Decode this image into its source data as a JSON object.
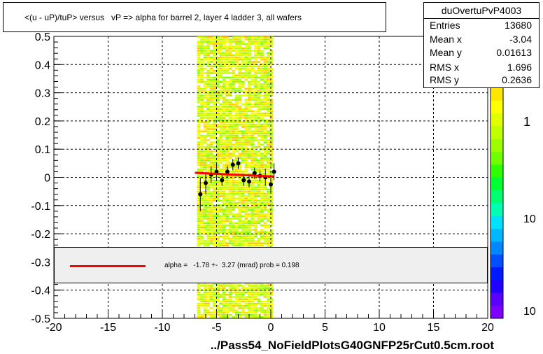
{
  "title": "<(u - uP)/tuP> versus   vP => alpha for barrel 2, layer 4 ladder 3, all wafers",
  "stats": {
    "name": "duOvertuPvP4003",
    "rows": [
      {
        "label": "Entries",
        "value": "13680"
      },
      {
        "label": "Mean x",
        "value": "-3.04"
      },
      {
        "label": "Mean y",
        "value": "0.01613"
      },
      {
        "label": "RMS x",
        "value": "1.696"
      },
      {
        "label": "RMS y",
        "value": "0.2636"
      }
    ]
  },
  "fit": {
    "text": "alpha =   -1.78 +-  3.27 (mrad) prob = 0.198",
    "color": "#ff0000"
  },
  "file_label": "../Pass54_NoFieldPlotsG40GNFP25rCut0.5cm.root",
  "colorbar": {
    "labels": [
      "1",
      "10",
      "10"
    ],
    "colors": [
      "#7f00ff",
      "#5a00ff",
      "#2000ff",
      "#0019ff",
      "#0050ff",
      "#0088ff",
      "#00b8ff",
      "#00e0ff",
      "#00ffb0",
      "#00ff70",
      "#00ff30",
      "#30ff00",
      "#70ff00",
      "#9cff00",
      "#c0ff00",
      "#e0ff00",
      "#ffff00",
      "#ffe600"
    ]
  },
  "chart_data": {
    "type": "scatter",
    "title": "<(u - uP)/tuP> versus   vP => alpha for barrel 2, layer 4 ladder 3, all wafers",
    "xlim": [
      -20,
      20
    ],
    "ylim": [
      -0.5,
      0.5
    ],
    "x_ticks": [
      "-20",
      "-15",
      "-10",
      "-5",
      "0",
      "5",
      "10",
      "15",
      "20"
    ],
    "y_ticks": [
      "-0.5",
      "-0.4",
      "-0.3",
      "-0.2",
      "-0.1",
      "0",
      "0.1",
      "0.2",
      "0.3",
      "0.4",
      "0.5"
    ],
    "grid": true,
    "histogram_band_x": [
      -6.8,
      0.2
    ],
    "profile_points": [
      {
        "x": -6.5,
        "y": -0.06,
        "err": 0.06
      },
      {
        "x": -6.0,
        "y": -0.02,
        "err": 0.04
      },
      {
        "x": -5.5,
        "y": 0.01,
        "err": 0.03
      },
      {
        "x": -5.0,
        "y": 0.02,
        "err": 0.03
      },
      {
        "x": -4.5,
        "y": -0.01,
        "err": 0.02
      },
      {
        "x": -4.0,
        "y": 0.02,
        "err": 0.02
      },
      {
        "x": -3.5,
        "y": 0.045,
        "err": 0.02
      },
      {
        "x": -3.0,
        "y": 0.05,
        "err": 0.02
      },
      {
        "x": -2.5,
        "y": -0.01,
        "err": 0.02
      },
      {
        "x": -2.0,
        "y": -0.015,
        "err": 0.02
      },
      {
        "x": -1.5,
        "y": 0.015,
        "err": 0.02
      },
      {
        "x": -1.0,
        "y": 0.005,
        "err": 0.02
      },
      {
        "x": -0.5,
        "y": 0.0,
        "err": 0.03
      },
      {
        "x": 0.0,
        "y": -0.025,
        "err": 0.03
      },
      {
        "x": 0.3,
        "y": 0.02,
        "err": 0.03
      }
    ],
    "fit_line": {
      "x": [
        -7,
        0.3
      ],
      "y": [
        0.016,
        0.003
      ]
    }
  }
}
